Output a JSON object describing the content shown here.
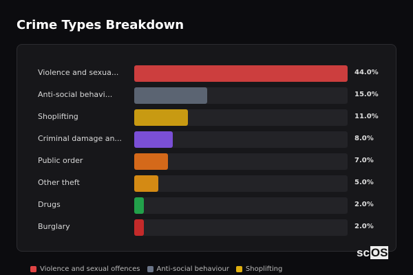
{
  "title": "Crime Types Breakdown",
  "logo": {
    "a": "sc",
    "b": "OS"
  },
  "chart_data": {
    "type": "bar",
    "orientation": "horizontal",
    "title": "Crime Types Breakdown",
    "categories": [
      "Violence and sexua...",
      "Anti-social behavi...",
      "Shoplifting",
      "Criminal damage an...",
      "Public order",
      "Other theft",
      "Drugs",
      "Burglary"
    ],
    "values": [
      44.0,
      15.0,
      11.0,
      8.0,
      7.0,
      5.0,
      2.0,
      2.0
    ],
    "value_labels": [
      "44.0%",
      "15.0%",
      "11.0%",
      "8.0%",
      "7.0%",
      "5.0%",
      "2.0%",
      "2.0%"
    ],
    "colors": [
      "#cc3e3e",
      "#5b6472",
      "#c89a12",
      "#7a4fd6",
      "#d4691a",
      "#d48a14",
      "#22a04a",
      "#c42a2a"
    ],
    "xlim": [
      0,
      44
    ]
  },
  "legend": [
    {
      "label": "Violence and sexual offences",
      "color": "#e04444"
    },
    {
      "label": "Anti-social behaviour",
      "color": "#6b7588"
    },
    {
      "label": "Shoplifting",
      "color": "#e0b010"
    }
  ]
}
